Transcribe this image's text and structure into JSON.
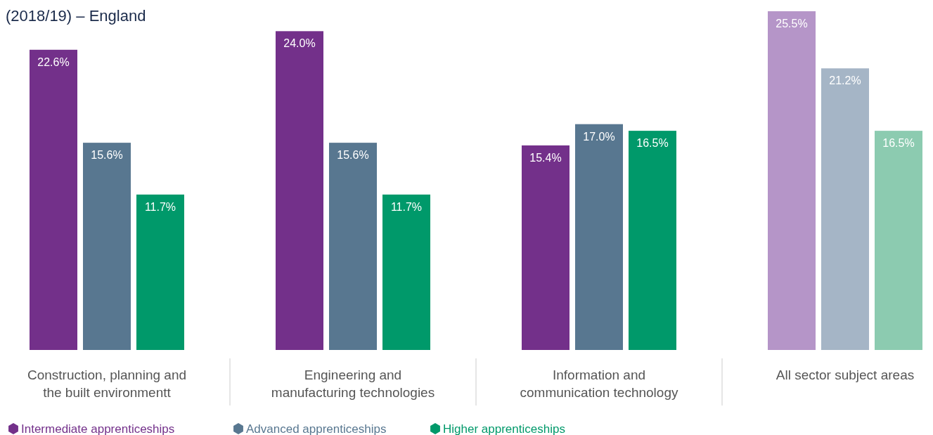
{
  "chart_data": {
    "type": "bar",
    "title": "(2018/19) – England",
    "categories": [
      "Construction, planning and the built environmentt",
      "Engineering and manufacturing technologies",
      "Information and communication technology",
      "All sector subject areas"
    ],
    "series": [
      {
        "name": "Intermediate apprenticeships",
        "color": "#73308a",
        "colors": [
          "#73308a",
          "#73308a",
          "#73308a",
          "#b595c8"
        ],
        "values": [
          22.6,
          24.0,
          15.4,
          25.5
        ],
        "value_labels": [
          "22.6%",
          "24.0%",
          "15.4%",
          "25.5%"
        ]
      },
      {
        "name": "Advanced apprenticeships",
        "color": "#587790",
        "colors": [
          "#587790",
          "#587790",
          "#587790",
          "#a5b5c6"
        ],
        "values": [
          15.6,
          15.6,
          17.0,
          21.2
        ],
        "value_labels": [
          "15.6%",
          "15.6%",
          "17.0%",
          "21.2%"
        ]
      },
      {
        "name": "Higher apprenticeships",
        "color": "#00996a",
        "colors": [
          "#00996a",
          "#00996a",
          "#00996a",
          "#8ccbb0"
        ],
        "values": [
          11.7,
          11.7,
          16.5,
          16.5
        ],
        "value_labels": [
          "11.7%",
          "11.7%",
          "16.5%",
          "16.5%"
        ]
      }
    ],
    "legend": "bottom left"
  }
}
